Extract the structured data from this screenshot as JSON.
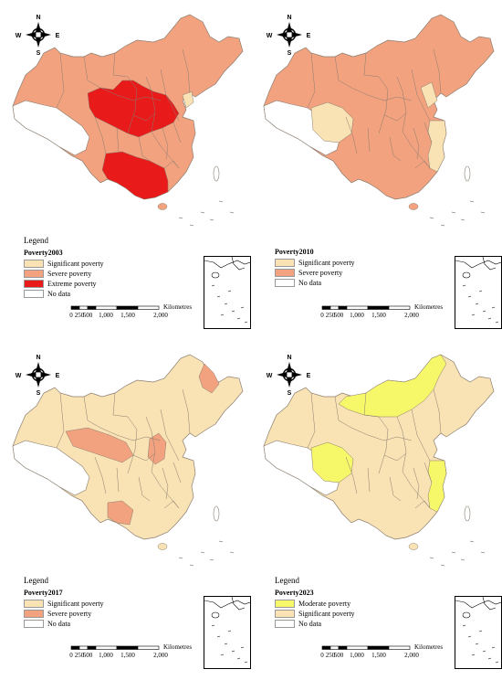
{
  "colors": {
    "extreme": "#e81a1a",
    "severe": "#f3a27f",
    "significant": "#f9e2b4",
    "moderate": "#f7f76a",
    "nodata": "#ffffff",
    "border": "#8a7d70"
  },
  "compass": {
    "n": "N",
    "s": "S",
    "e": "E",
    "w": "W"
  },
  "scale": {
    "ticks": [
      "0",
      "250",
      "500",
      "1,000",
      "1,500",
      "2,000"
    ],
    "unit": "Kilometres"
  },
  "panels": [
    {
      "id": "p2003",
      "legend_title": "Legend",
      "variable": "Poverty2003",
      "classes": [
        {
          "label": "Significant poverty",
          "color_key": "significant"
        },
        {
          "label": "Severe poverty",
          "color_key": "severe"
        },
        {
          "label": "Extreme poverty",
          "color_key": "extreme"
        },
        {
          "label": "No data",
          "color_key": "nodata"
        }
      ]
    },
    {
      "id": "p2010",
      "legend_title": "",
      "variable": "Poverty2010",
      "classes": [
        {
          "label": "Significant poverty",
          "color_key": "significant"
        },
        {
          "label": "Severe poverty",
          "color_key": "severe"
        },
        {
          "label": "No data",
          "color_key": "nodata"
        }
      ]
    },
    {
      "id": "p2017",
      "legend_title": "Legend",
      "variable": "Poverty2017",
      "classes": [
        {
          "label": "Significant poverty",
          "color_key": "significant"
        },
        {
          "label": "Severe poverty",
          "color_key": "severe"
        },
        {
          "label": "No data",
          "color_key": "nodata"
        }
      ]
    },
    {
      "id": "p2023",
      "legend_title": "Legend",
      "variable": "Poverty2023",
      "classes": [
        {
          "label": "Moderate poverty",
          "color_key": "moderate"
        },
        {
          "label": "Significant poverty",
          "color_key": "significant"
        },
        {
          "label": "No data",
          "color_key": "nodata"
        }
      ]
    }
  ]
}
